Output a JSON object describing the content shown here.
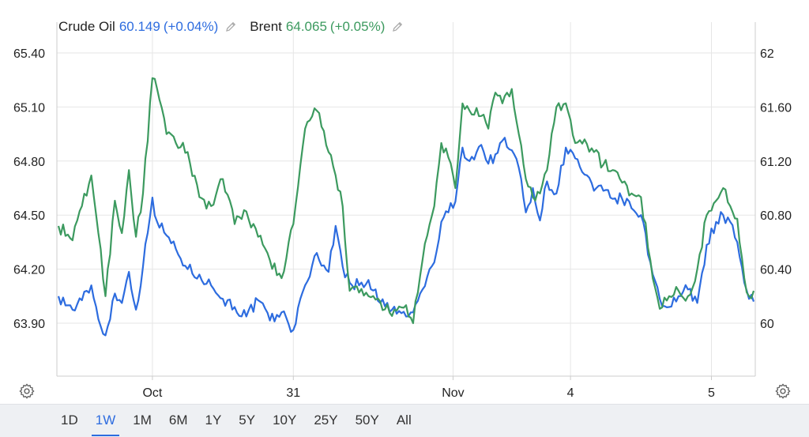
{
  "legend": {
    "crude": {
      "name": "Crude Oil",
      "value": "60.149",
      "change": "(+0.04%)"
    },
    "brent": {
      "name": "Brent",
      "value": "64.065",
      "change": "(+0.05%)"
    },
    "edit_icon": "pencil-icon"
  },
  "colors": {
    "crude": "#2d6cdf",
    "brent": "#3c9a5f",
    "grid": "#e6e6e6",
    "axis": "#cccccc"
  },
  "settings_icon": "gear-icon",
  "range_tabs": {
    "items": [
      "1D",
      "1W",
      "1M",
      "6M",
      "1Y",
      "5Y",
      "10Y",
      "25Y",
      "50Y",
      "All"
    ],
    "active": "1W"
  },
  "chart_data": {
    "type": "line",
    "x_labels": [
      "Oct",
      "31",
      "Nov",
      "4",
      "5"
    ],
    "x_label_index": [
      40,
      100,
      168,
      218,
      278
    ],
    "n_points": 296,
    "left_axis": {
      "ticks": [
        "65.40",
        "65.10",
        "64.80",
        "64.50",
        "64.20",
        "63.90"
      ],
      "range": [
        63.9,
        65.4
      ]
    },
    "right_axis": {
      "ticks": [
        "62",
        "61.60",
        "61.20",
        "60.80",
        "60.40",
        "60"
      ],
      "range": [
        60,
        62
      ]
    },
    "series": [
      {
        "name": "Crude Oil",
        "axis": "right",
        "keypoints": [
          [
            0,
            60.2
          ],
          [
            6,
            60.1
          ],
          [
            10,
            60.17
          ],
          [
            14,
            60.28
          ],
          [
            17,
            60.03
          ],
          [
            20,
            59.91
          ],
          [
            24,
            60.22
          ],
          [
            27,
            60.15
          ],
          [
            30,
            60.38
          ],
          [
            33,
            60.1
          ],
          [
            36,
            60.42
          ],
          [
            40,
            60.93
          ],
          [
            42,
            60.75
          ],
          [
            46,
            60.65
          ],
          [
            50,
            60.55
          ],
          [
            55,
            60.4
          ],
          [
            60,
            60.36
          ],
          [
            65,
            60.28
          ],
          [
            70,
            60.18
          ],
          [
            75,
            60.12
          ],
          [
            80,
            60.05
          ],
          [
            85,
            60.17
          ],
          [
            90,
            60.02
          ],
          [
            95,
            60.08
          ],
          [
            100,
            59.95
          ],
          [
            105,
            60.28
          ],
          [
            110,
            60.52
          ],
          [
            115,
            60.38
          ],
          [
            118,
            60.72
          ],
          [
            121,
            60.42
          ],
          [
            124,
            60.3
          ],
          [
            128,
            60.28
          ],
          [
            132,
            60.32
          ],
          [
            137,
            60.15
          ],
          [
            142,
            60.1
          ],
          [
            148,
            60.05
          ],
          [
            151,
            60.08
          ],
          [
            155,
            60.25
          ],
          [
            160,
            60.45
          ],
          [
            163,
            60.75
          ],
          [
            166,
            60.82
          ],
          [
            169,
            60.9
          ],
          [
            172,
            61.3
          ],
          [
            175,
            61.2
          ],
          [
            180,
            61.32
          ],
          [
            183,
            61.18
          ],
          [
            186,
            61.25
          ],
          [
            189,
            61.35
          ],
          [
            193,
            61.28
          ],
          [
            196,
            61.15
          ],
          [
            199,
            60.82
          ],
          [
            202,
            61.0
          ],
          [
            205,
            60.76
          ],
          [
            208,
            61.05
          ],
          [
            212,
            60.96
          ],
          [
            216,
            61.3
          ],
          [
            220,
            61.22
          ],
          [
            224,
            61.1
          ],
          [
            228,
            60.98
          ],
          [
            232,
            60.98
          ],
          [
            236,
            60.92
          ],
          [
            240,
            60.92
          ],
          [
            244,
            60.85
          ],
          [
            248,
            60.8
          ],
          [
            252,
            60.45
          ],
          [
            256,
            60.18
          ],
          [
            260,
            60.12
          ],
          [
            264,
            60.2
          ],
          [
            268,
            60.25
          ],
          [
            272,
            60.15
          ],
          [
            276,
            60.58
          ],
          [
            280,
            60.75
          ],
          [
            283,
            60.8
          ],
          [
            286,
            60.75
          ],
          [
            289,
            60.6
          ],
          [
            292,
            60.3
          ],
          [
            294,
            60.18
          ],
          [
            296,
            60.16
          ]
        ]
      },
      {
        "name": "Brent",
        "axis": "left",
        "keypoints": [
          [
            0,
            64.44
          ],
          [
            6,
            64.36
          ],
          [
            10,
            64.55
          ],
          [
            14,
            64.72
          ],
          [
            17,
            64.4
          ],
          [
            20,
            64.05
          ],
          [
            24,
            64.58
          ],
          [
            27,
            64.4
          ],
          [
            30,
            64.75
          ],
          [
            33,
            64.38
          ],
          [
            36,
            64.62
          ],
          [
            40,
            65.26
          ],
          [
            42,
            65.2
          ],
          [
            46,
            64.95
          ],
          [
            50,
            64.9
          ],
          [
            55,
            64.85
          ],
          [
            60,
            64.6
          ],
          [
            65,
            64.55
          ],
          [
            70,
            64.7
          ],
          [
            75,
            64.45
          ],
          [
            80,
            64.52
          ],
          [
            85,
            64.38
          ],
          [
            90,
            64.25
          ],
          [
            95,
            64.15
          ],
          [
            100,
            64.45
          ],
          [
            105,
            64.98
          ],
          [
            110,
            65.08
          ],
          [
            115,
            64.85
          ],
          [
            118,
            64.72
          ],
          [
            121,
            64.55
          ],
          [
            124,
            64.08
          ],
          [
            128,
            64.07
          ],
          [
            132,
            64.05
          ],
          [
            137,
            64.02
          ],
          [
            142,
            63.94
          ],
          [
            148,
            64.0
          ],
          [
            151,
            63.9
          ],
          [
            155,
            64.25
          ],
          [
            160,
            64.55
          ],
          [
            163,
            64.9
          ],
          [
            166,
            64.82
          ],
          [
            169,
            64.65
          ],
          [
            172,
            65.12
          ],
          [
            175,
            65.08
          ],
          [
            180,
            65.05
          ],
          [
            183,
            64.98
          ],
          [
            186,
            65.18
          ],
          [
            189,
            65.12
          ],
          [
            193,
            65.2
          ],
          [
            196,
            64.95
          ],
          [
            199,
            64.7
          ],
          [
            202,
            64.6
          ],
          [
            205,
            64.62
          ],
          [
            208,
            64.75
          ],
          [
            212,
            65.1
          ],
          [
            216,
            65.12
          ],
          [
            220,
            64.9
          ],
          [
            224,
            64.92
          ],
          [
            228,
            64.85
          ],
          [
            232,
            64.78
          ],
          [
            236,
            64.75
          ],
          [
            240,
            64.68
          ],
          [
            244,
            64.62
          ],
          [
            248,
            64.6
          ],
          [
            252,
            64.25
          ],
          [
            256,
            63.98
          ],
          [
            260,
            64.05
          ],
          [
            264,
            64.08
          ],
          [
            268,
            64.05
          ],
          [
            272,
            64.2
          ],
          [
            276,
            64.5
          ],
          [
            280,
            64.58
          ],
          [
            283,
            64.65
          ],
          [
            286,
            64.55
          ],
          [
            289,
            64.48
          ],
          [
            292,
            64.15
          ],
          [
            294,
            64.05
          ],
          [
            296,
            64.08
          ]
        ]
      }
    ]
  }
}
